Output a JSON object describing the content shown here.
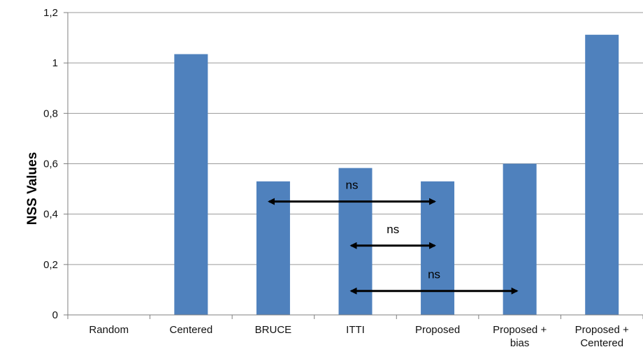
{
  "chart_data": {
    "type": "bar",
    "categories": [
      "Random",
      "Centered",
      "BRUCE",
      "ITTI",
      "Proposed",
      "Proposed + bias",
      "Proposed + Centered"
    ],
    "values": [
      0,
      1.035,
      0.53,
      0.583,
      0.53,
      0.6,
      1.112
    ],
    "xlabel": "",
    "ylabel": "NSS Values",
    "ylim": [
      0,
      1.2
    ],
    "yticks": [
      0,
      0.2,
      0.4,
      0.6,
      0.8,
      1,
      1.2
    ],
    "ytick_labels": [
      "0",
      "0,2",
      "0,4",
      "0,6",
      "0,8",
      "1",
      "1,2"
    ],
    "grid": "horizontal",
    "bar_color": "#4f81bd",
    "annotations": [
      {
        "text": "ns",
        "from": "BRUCE",
        "to": "Proposed",
        "y_value": 0.45
      },
      {
        "text": "ns",
        "from": "ITTI",
        "to": "Proposed",
        "y_value": 0.275
      },
      {
        "text": "ns",
        "from": "ITTI",
        "to": "Proposed + bias",
        "y_value": 0.095
      }
    ]
  }
}
